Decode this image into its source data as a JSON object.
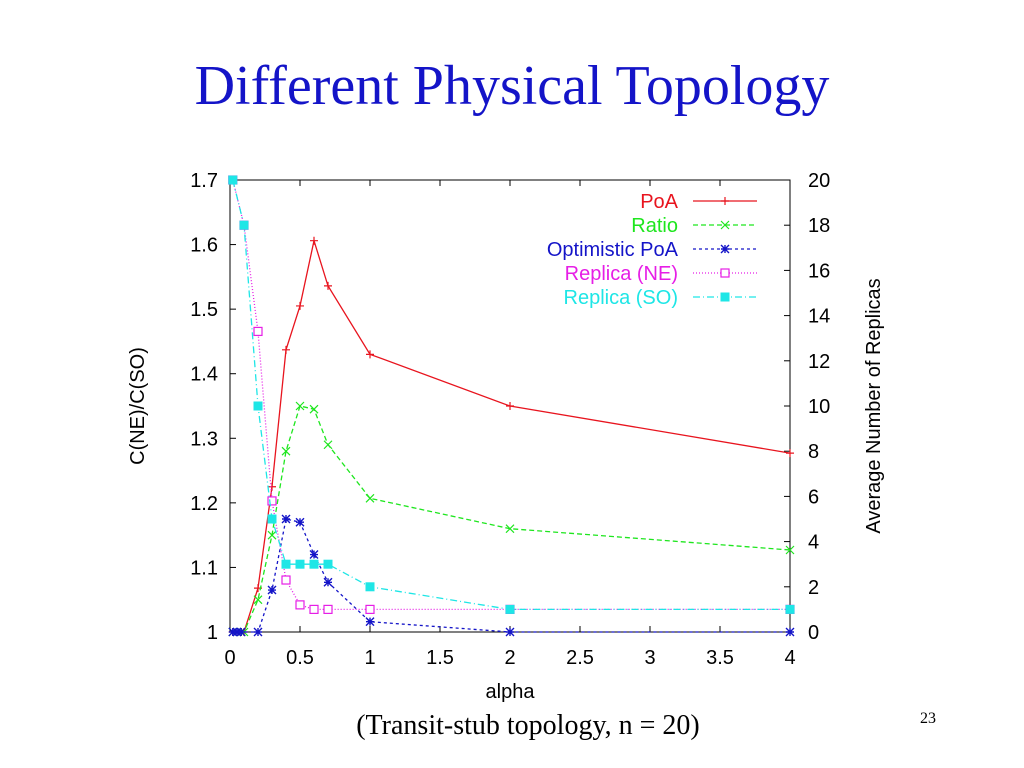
{
  "slide": {
    "title": "Different Physical Topology",
    "caption": "(Transit-stub topology, n = 20)",
    "page_number": "23"
  },
  "chart_data": {
    "type": "line",
    "xlabel": "alpha",
    "ylabel_left": "C(NE)/C(SO)",
    "ylabel_right": "Average Number of Replicas",
    "x_ticks": [
      "0",
      "0.5",
      "1",
      "1.5",
      "2",
      "2.5",
      "3",
      "3.5",
      "4"
    ],
    "y_left_ticks": [
      "1",
      "1.1",
      "1.2",
      "1.3",
      "1.4",
      "1.5",
      "1.6",
      "1.7"
    ],
    "y_right_ticks": [
      "0",
      "2",
      "4",
      "6",
      "8",
      "10",
      "12",
      "14",
      "16",
      "18",
      "20"
    ],
    "xlim": [
      0,
      4
    ],
    "ylim_left": [
      1,
      1.7
    ],
    "ylim_right": [
      0,
      20
    ],
    "grid": false,
    "legend_position": "top-right",
    "series": [
      {
        "name": "PoA",
        "axis": "left",
        "color": "#e8141e",
        "dash": "",
        "marker": "plus",
        "x": [
          0.02,
          0.05,
          0.08,
          0.1,
          0.2,
          0.3,
          0.4,
          0.5,
          0.6,
          0.7,
          1.0,
          2.0,
          4.0
        ],
        "y": [
          1.0,
          1.0,
          1.0,
          1.0,
          1.068,
          1.225,
          1.437,
          1.505,
          1.606,
          1.536,
          1.43,
          1.35,
          1.277
        ]
      },
      {
        "name": "Ratio",
        "axis": "left",
        "color": "#1ee61e",
        "dash": "5,3",
        "marker": "x",
        "x": [
          0.02,
          0.05,
          0.08,
          0.1,
          0.2,
          0.3,
          0.4,
          0.5,
          0.6,
          0.7,
          1.0,
          2.0,
          4.0
        ],
        "y": [
          1.0,
          1.0,
          1.0,
          1.0,
          1.05,
          1.15,
          1.28,
          1.35,
          1.345,
          1.29,
          1.207,
          1.16,
          1.127
        ]
      },
      {
        "name": "Optimistic PoA",
        "axis": "left",
        "color": "#1414c8",
        "dash": "3,3",
        "marker": "star",
        "x": [
          0.02,
          0.05,
          0.08,
          0.2,
          0.3,
          0.4,
          0.5,
          0.6,
          0.7,
          1.0,
          2.0,
          4.0
        ],
        "y": [
          1.0,
          1.0,
          1.0,
          1.0,
          1.065,
          1.175,
          1.17,
          1.12,
          1.077,
          1.016,
          1.0,
          1.0
        ]
      },
      {
        "name": "Replica (NE)",
        "axis": "right",
        "color": "#e61ee6",
        "dash": "1,2",
        "marker": "square-open",
        "x": [
          0.02,
          0.1,
          0.2,
          0.3,
          0.4,
          0.5,
          0.6,
          0.7,
          1.0,
          2.0,
          4.0
        ],
        "y": [
          20,
          18,
          13.3,
          5.8,
          2.3,
          1.2,
          1.0,
          1.0,
          1.0,
          1.0,
          1.0
        ]
      },
      {
        "name": "Replica (SO)",
        "axis": "right",
        "color": "#1ee6e6",
        "dash": "7,3,1,3",
        "marker": "square-filled",
        "x": [
          0.02,
          0.1,
          0.2,
          0.3,
          0.4,
          0.5,
          0.6,
          0.7,
          1.0,
          2.0,
          4.0
        ],
        "y": [
          20,
          18,
          10,
          5.0,
          3.0,
          3.0,
          3.0,
          3.0,
          2.0,
          1.0,
          1.0
        ]
      }
    ]
  }
}
